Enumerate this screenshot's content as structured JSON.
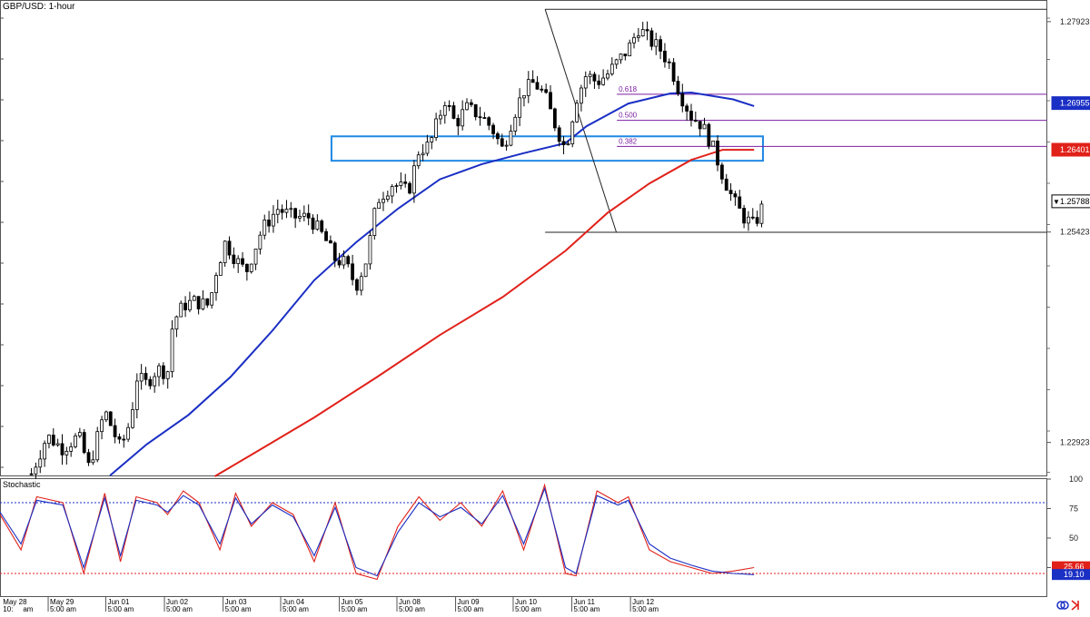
{
  "chart_data": {
    "type": "candlestick",
    "title": "GBP/USD: 1-hour",
    "subchart_title": "Stochastic",
    "price_axis": {
      "ylim": [
        1.2252,
        1.2818
      ],
      "tick_labels": [
        "1.27923",
        "1.25423",
        "1.22923"
      ],
      "tick_values": [
        1.27923,
        1.25423,
        1.22923
      ]
    },
    "stochastic_axis": {
      "ylim": [
        0,
        100
      ],
      "tick_labels": [
        "100",
        "75",
        "50",
        "25"
      ],
      "tick_values": [
        100,
        75,
        50,
        25
      ]
    },
    "price_badges": [
      {
        "label": "1.26955",
        "value": 1.26955,
        "color": "#1a2fc4"
      },
      {
        "label": "1.26401",
        "value": 1.26401,
        "color": "#e0211a"
      },
      {
        "label": "1.25788",
        "value": 1.25788,
        "color": "#ffffff",
        "marker": "▼"
      }
    ],
    "stoch_badges": [
      {
        "label": "25.66",
        "value": 25.66,
        "color": "#e0211a"
      },
      {
        "label": "19.10",
        "value": 19.1,
        "color": "#1a2fc4"
      }
    ],
    "x_labels": [
      "May 28",
      "10:",
      "am",
      "May 29",
      "5:00 am",
      "Jun 01",
      "5:00 am",
      "Jun 02",
      "5:00 am",
      "Jun 03",
      "5:00 am",
      "Jun 04",
      "5:00 am",
      "Jun 05",
      "5:00 am",
      "Jun 08",
      "5:00 am",
      "Jun 09",
      "5:00 am",
      "Jun 10",
      "5:00 am",
      "Jun 11",
      "5:00 am",
      "Jun 12",
      "5:00 am"
    ],
    "fibonacci": {
      "high": 1.2807,
      "low": 1.2542,
      "levels": [
        {
          "label": "0.618",
          "value": 1.2706
        },
        {
          "label": "0.500",
          "value": 1.2675
        },
        {
          "label": "0.382",
          "value": 1.2644
        }
      ]
    },
    "zone": {
      "top": 1.2656,
      "bottom": 1.2627,
      "color": "#1e88e5"
    },
    "moving_averages": [
      {
        "color": "#1a2fc4",
        "points": [
          [
            0.105,
            1.2253
          ],
          [
            0.14,
            1.229
          ],
          [
            0.18,
            1.2325
          ],
          [
            0.22,
            1.237
          ],
          [
            0.26,
            1.2425
          ],
          [
            0.3,
            1.2485
          ],
          [
            0.34,
            1.253
          ],
          [
            0.38,
            1.257
          ],
          [
            0.42,
            1.2605
          ],
          [
            0.46,
            1.2623
          ],
          [
            0.5,
            1.2636
          ],
          [
            0.54,
            1.2648
          ],
          [
            0.56,
            1.2668
          ],
          [
            0.6,
            1.2695
          ],
          [
            0.64,
            1.2707
          ],
          [
            0.66,
            1.2708
          ],
          [
            0.7,
            1.27
          ],
          [
            0.72,
            1.2692
          ]
        ]
      },
      {
        "color": "#e0211a",
        "points": [
          [
            0.205,
            1.2252
          ],
          [
            0.25,
            1.2285
          ],
          [
            0.3,
            1.2322
          ],
          [
            0.36,
            1.237
          ],
          [
            0.42,
            1.242
          ],
          [
            0.48,
            1.2465
          ],
          [
            0.54,
            1.252
          ],
          [
            0.58,
            1.2565
          ],
          [
            0.62,
            1.26
          ],
          [
            0.66,
            1.2628
          ],
          [
            0.69,
            1.264
          ],
          [
            0.72,
            1.264
          ]
        ]
      }
    ],
    "price_path": [
      [
        0.03,
        1.2255
      ],
      [
        0.045,
        1.23
      ],
      [
        0.06,
        1.2285
      ],
      [
        0.075,
        1.23
      ],
      [
        0.085,
        1.2262
      ],
      [
        0.1,
        1.233
      ],
      [
        0.115,
        1.2285
      ],
      [
        0.125,
        1.232
      ],
      [
        0.13,
        1.237
      ],
      [
        0.14,
        1.2362
      ],
      [
        0.15,
        1.238
      ],
      [
        0.16,
        1.2375
      ],
      [
        0.165,
        1.2435
      ],
      [
        0.175,
        1.2455
      ],
      [
        0.185,
        1.246
      ],
      [
        0.2,
        1.2455
      ],
      [
        0.205,
        1.249
      ],
      [
        0.215,
        1.253
      ],
      [
        0.225,
        1.251
      ],
      [
        0.235,
        1.2495
      ],
      [
        0.25,
        1.2545
      ],
      [
        0.265,
        1.257
      ],
      [
        0.28,
        1.256
      ],
      [
        0.295,
        1.256
      ],
      [
        0.31,
        1.2535
      ],
      [
        0.32,
        1.251
      ],
      [
        0.33,
        1.2505
      ],
      [
        0.34,
        1.2478
      ],
      [
        0.35,
        1.251
      ],
      [
        0.36,
        1.258
      ],
      [
        0.375,
        1.26
      ],
      [
        0.39,
        1.259
      ],
      [
        0.4,
        1.264
      ],
      [
        0.41,
        1.2645
      ],
      [
        0.425,
        1.27
      ],
      [
        0.435,
        1.267
      ],
      [
        0.445,
        1.269
      ],
      [
        0.46,
        1.268
      ],
      [
        0.47,
        1.2665
      ],
      [
        0.48,
        1.264
      ],
      [
        0.49,
        1.268
      ],
      [
        0.5,
        1.271
      ],
      [
        0.51,
        1.272
      ],
      [
        0.52,
        1.2705
      ],
      [
        0.53,
        1.267
      ],
      [
        0.54,
        1.264
      ],
      [
        0.55,
        1.27
      ],
      [
        0.56,
        1.273
      ],
      [
        0.57,
        1.272
      ],
      [
        0.58,
        1.273
      ],
      [
        0.59,
        1.2745
      ],
      [
        0.6,
        1.276
      ],
      [
        0.61,
        1.2785
      ],
      [
        0.62,
        1.277
      ],
      [
        0.63,
        1.276
      ],
      [
        0.64,
        1.274
      ],
      [
        0.65,
        1.2705
      ],
      [
        0.66,
        1.268
      ],
      [
        0.67,
        1.267
      ],
      [
        0.68,
        1.2645
      ],
      [
        0.69,
        1.261
      ],
      [
        0.7,
        1.258
      ],
      [
        0.71,
        1.256
      ],
      [
        0.72,
        1.255
      ],
      [
        0.73,
        1.2578
      ]
    ],
    "stochastic_series": [
      {
        "color": "#e0211a",
        "points": [
          [
            0.0,
            70
          ],
          [
            0.02,
            40
          ],
          [
            0.035,
            85
          ],
          [
            0.06,
            80
          ],
          [
            0.08,
            20
          ],
          [
            0.1,
            88
          ],
          [
            0.115,
            30
          ],
          [
            0.13,
            85
          ],
          [
            0.15,
            80
          ],
          [
            0.16,
            70
          ],
          [
            0.175,
            90
          ],
          [
            0.19,
            80
          ],
          [
            0.21,
            40
          ],
          [
            0.225,
            88
          ],
          [
            0.24,
            60
          ],
          [
            0.26,
            80
          ],
          [
            0.28,
            70
          ],
          [
            0.3,
            30
          ],
          [
            0.32,
            80
          ],
          [
            0.34,
            20
          ],
          [
            0.36,
            15
          ],
          [
            0.38,
            60
          ],
          [
            0.4,
            85
          ],
          [
            0.42,
            65
          ],
          [
            0.44,
            80
          ],
          [
            0.46,
            60
          ],
          [
            0.48,
            90
          ],
          [
            0.5,
            40
          ],
          [
            0.52,
            95
          ],
          [
            0.54,
            20
          ],
          [
            0.55,
            18
          ],
          [
            0.57,
            90
          ],
          [
            0.59,
            80
          ],
          [
            0.6,
            85
          ],
          [
            0.62,
            40
          ],
          [
            0.64,
            30
          ],
          [
            0.66,
            25
          ],
          [
            0.68,
            20
          ],
          [
            0.7,
            22
          ],
          [
            0.72,
            25
          ]
        ]
      },
      {
        "color": "#1a2fc4",
        "points": [
          [
            0.0,
            72
          ],
          [
            0.02,
            45
          ],
          [
            0.035,
            82
          ],
          [
            0.06,
            78
          ],
          [
            0.08,
            25
          ],
          [
            0.1,
            84
          ],
          [
            0.115,
            35
          ],
          [
            0.13,
            82
          ],
          [
            0.15,
            78
          ],
          [
            0.16,
            72
          ],
          [
            0.175,
            86
          ],
          [
            0.19,
            78
          ],
          [
            0.21,
            45
          ],
          [
            0.225,
            84
          ],
          [
            0.24,
            62
          ],
          [
            0.26,
            78
          ],
          [
            0.28,
            68
          ],
          [
            0.3,
            35
          ],
          [
            0.32,
            76
          ],
          [
            0.34,
            25
          ],
          [
            0.36,
            18
          ],
          [
            0.38,
            55
          ],
          [
            0.4,
            80
          ],
          [
            0.42,
            68
          ],
          [
            0.44,
            76
          ],
          [
            0.46,
            62
          ],
          [
            0.48,
            86
          ],
          [
            0.5,
            45
          ],
          [
            0.52,
            92
          ],
          [
            0.54,
            25
          ],
          [
            0.55,
            20
          ],
          [
            0.57,
            86
          ],
          [
            0.59,
            78
          ],
          [
            0.6,
            82
          ],
          [
            0.62,
            45
          ],
          [
            0.64,
            33
          ],
          [
            0.66,
            27
          ],
          [
            0.68,
            22
          ],
          [
            0.7,
            20
          ],
          [
            0.72,
            19
          ]
        ]
      }
    ],
    "grid": false,
    "legend": "none",
    "colors": {
      "bull": "#000000",
      "bear": "#000000",
      "overbought": "#1a2fc4",
      "oversold": "#e0211a"
    }
  }
}
